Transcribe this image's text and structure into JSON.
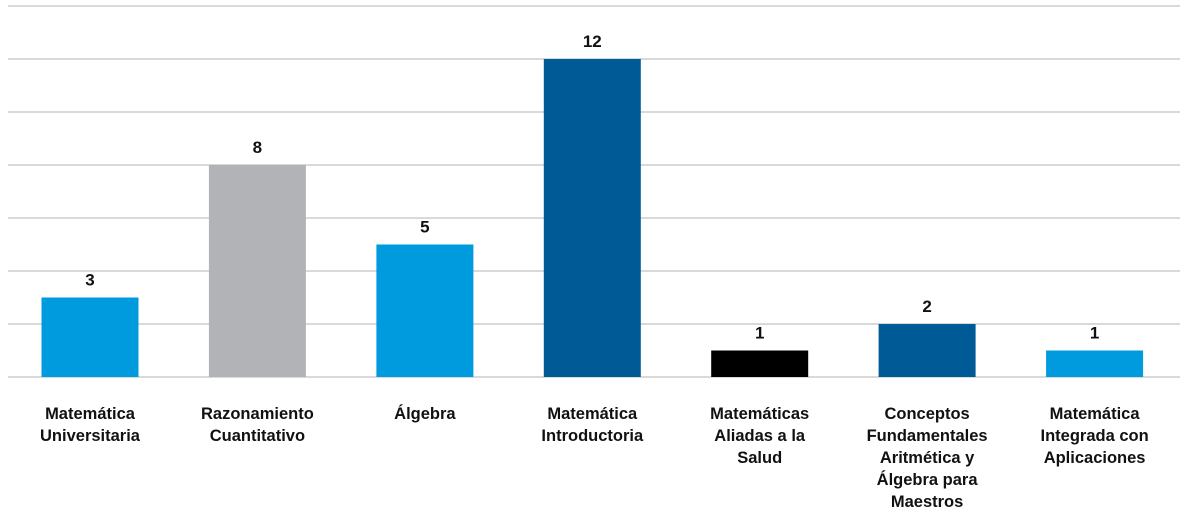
{
  "chart_data": {
    "type": "bar",
    "title": "",
    "xlabel": "",
    "ylabel": "",
    "ylim": [
      0,
      14
    ],
    "grid": true,
    "legend": "none",
    "categories": [
      [
        "Matemática",
        "Universitaria"
      ],
      [
        "Razonamiento",
        "Cuantitativo"
      ],
      [
        "Álgebra"
      ],
      [
        "Matemática",
        "Introductoria"
      ],
      [
        "Matemáticas",
        "Aliadas a la",
        "Salud"
      ],
      [
        "Conceptos",
        "Fundamentales",
        "Aritmética y",
        "Álgebra para",
        "Maestros"
      ],
      [
        "Matemática",
        "Integrada con",
        "Aplicaciones"
      ]
    ],
    "values": [
      3,
      8,
      5,
      12,
      1,
      2,
      1
    ],
    "value_labels": [
      "3",
      "8",
      "5",
      "12",
      "1",
      "2",
      "1"
    ],
    "colors": [
      "#009ADE",
      "#B1B3B6",
      "#009ADE",
      "#005A96",
      "#000000",
      "#005A96",
      "#009ADE"
    ]
  }
}
